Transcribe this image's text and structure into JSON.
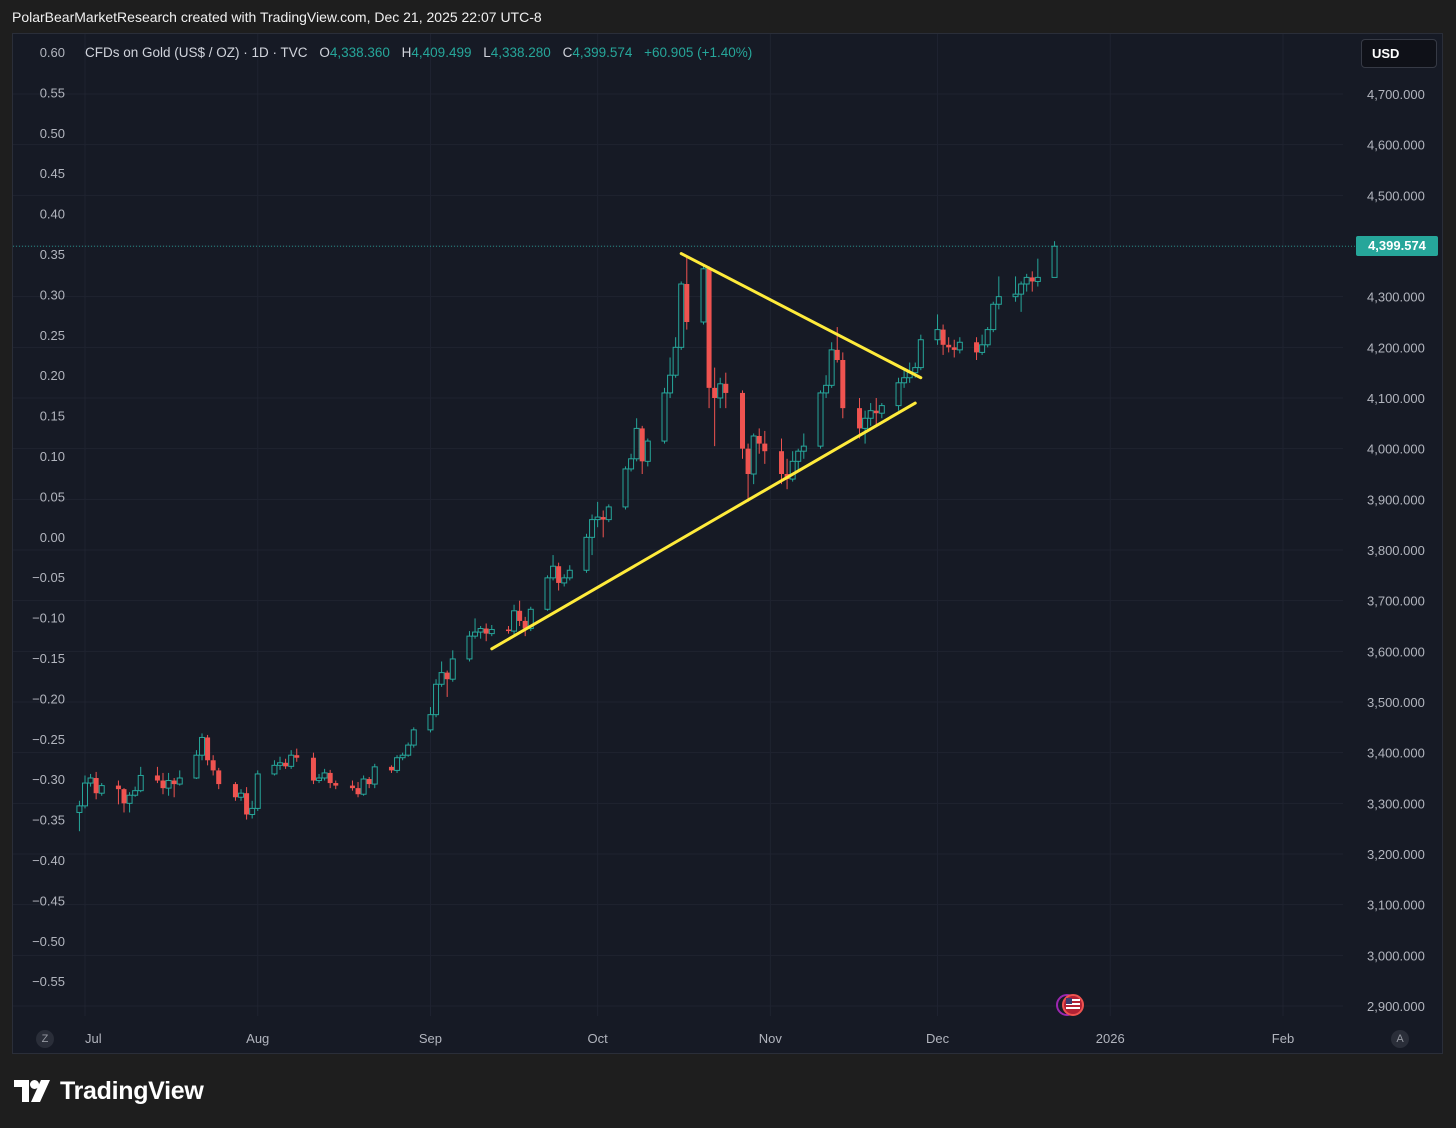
{
  "caption": "PolarBearMarketResearch created with TradingView.com, Dec 21, 2025 22:07 UTC-8",
  "legend": {
    "symbol": "CFDs on Gold (US$ / OZ) · 1D · TVC",
    "o_label": "O",
    "o_value": "4,338.360",
    "h_label": "H",
    "h_value": "4,409.499",
    "l_label": "L",
    "l_value": "4,338.280",
    "c_label": "C",
    "c_value": "4,399.574",
    "change": "+60.905 (+1.40%)"
  },
  "currency_button": "USD",
  "last_price_tag": "4,399.574",
  "corner_left": "Z",
  "corner_right": "A",
  "brand": "TradingView",
  "colors": {
    "up": "#26a69a",
    "down": "#ef5350",
    "trendline": "#ffeb3b",
    "background": "#161a25"
  },
  "icons": {
    "event": "us-flag-event-icon",
    "logo": "tradingview-logo-icon"
  },
  "chart_data": {
    "type": "candlestick",
    "title": "CFDs on Gold (US$ / OZ) · 1D · TVC",
    "right_axis": {
      "ticks": [
        "4,700.000",
        "4,600.000",
        "4,500.000",
        "4,400.000",
        "4,300.000",
        "4,200.000",
        "4,100.000",
        "4,000.000",
        "3,900.000",
        "3,800.000",
        "3,700.000",
        "3,600.000",
        "3,500.000",
        "3,400.000",
        "3,300.000",
        "3,200.000",
        "3,100.000",
        "3,000.000",
        "2,900.000"
      ],
      "range": [
        2800,
        4760
      ]
    },
    "left_axis": {
      "ticks": [
        "0.60",
        "0.55",
        "0.50",
        "0.45",
        "0.40",
        "0.35",
        "0.30",
        "0.25",
        "0.20",
        "0.15",
        "0.10",
        "0.05",
        "0.00",
        "−0.05",
        "−0.10",
        "−0.15",
        "−0.20",
        "−0.25",
        "−0.30",
        "−0.35",
        "−0.40",
        "−0.45",
        "−0.50",
        "−0.55"
      ]
    },
    "x_axis": {
      "labels": [
        "Jul",
        "Aug",
        "Sep",
        "Oct",
        "Nov",
        "Dec",
        "2026",
        "Feb"
      ],
      "label_dates": [
        "2025-07-01",
        "2025-08-01",
        "2025-09-01",
        "2025-10-01",
        "2025-11-01",
        "2025-12-01",
        "2026-01-01",
        "2026-02-01"
      ]
    },
    "last_price": 4399.574,
    "candles": [
      [
        "2025-06-30",
        3282,
        3305,
        3245,
        3295
      ],
      [
        "2025-07-01",
        3295,
        3355,
        3290,
        3340
      ],
      [
        "2025-07-02",
        3340,
        3358,
        3333,
        3350
      ],
      [
        "2025-07-03",
        3350,
        3362,
        3308,
        3320
      ],
      [
        "2025-07-04",
        3320,
        3340,
        3315,
        3335
      ],
      [
        "2025-07-07",
        3335,
        3345,
        3298,
        3328
      ],
      [
        "2025-07-08",
        3328,
        3330,
        3282,
        3300
      ],
      [
        "2025-07-09",
        3300,
        3322,
        3282,
        3316
      ],
      [
        "2025-07-10",
        3316,
        3333,
        3313,
        3325
      ],
      [
        "2025-07-11",
        3325,
        3372,
        3322,
        3355
      ],
      [
        "2025-07-14",
        3355,
        3372,
        3340,
        3345
      ],
      [
        "2025-07-15",
        3345,
        3360,
        3318,
        3330
      ],
      [
        "2025-07-16",
        3330,
        3360,
        3315,
        3345
      ],
      [
        "2025-07-17",
        3345,
        3350,
        3312,
        3338
      ],
      [
        "2025-07-18",
        3338,
        3365,
        3335,
        3350
      ],
      [
        "2025-07-21",
        3350,
        3405,
        3348,
        3395
      ],
      [
        "2025-07-22",
        3395,
        3438,
        3385,
        3430
      ],
      [
        "2025-07-23",
        3430,
        3435,
        3375,
        3385
      ],
      [
        "2025-07-24",
        3385,
        3395,
        3355,
        3365
      ],
      [
        "2025-07-25",
        3365,
        3370,
        3328,
        3338
      ],
      [
        "2025-07-28",
        3338,
        3342,
        3305,
        3312
      ],
      [
        "2025-07-29",
        3312,
        3328,
        3305,
        3320
      ],
      [
        "2025-07-30",
        3320,
        3332,
        3268,
        3278
      ],
      [
        "2025-07-31",
        3278,
        3305,
        3270,
        3290
      ],
      [
        "2025-08-01",
        3290,
        3365,
        3285,
        3358
      ],
      [
        "2025-08-04",
        3358,
        3385,
        3355,
        3375
      ],
      [
        "2025-08-05",
        3375,
        3392,
        3366,
        3380
      ],
      [
        "2025-08-06",
        3380,
        3388,
        3368,
        3373
      ],
      [
        "2025-08-07",
        3373,
        3405,
        3368,
        3395
      ],
      [
        "2025-08-08",
        3395,
        3408,
        3382,
        3390
      ],
      [
        "2025-08-11",
        3390,
        3400,
        3338,
        3345
      ],
      [
        "2025-08-12",
        3345,
        3358,
        3340,
        3350
      ],
      [
        "2025-08-13",
        3350,
        3368,
        3345,
        3360
      ],
      [
        "2025-08-14",
        3360,
        3366,
        3330,
        3340
      ],
      [
        "2025-08-15",
        3340,
        3345,
        3328,
        3335
      ],
      [
        "2025-08-18",
        3335,
        3345,
        3325,
        3330
      ],
      [
        "2025-08-19",
        3330,
        3342,
        3312,
        3318
      ],
      [
        "2025-08-20",
        3318,
        3355,
        3315,
        3348
      ],
      [
        "2025-08-21",
        3348,
        3352,
        3330,
        3338
      ],
      [
        "2025-08-22",
        3338,
        3378,
        3330,
        3372
      ],
      [
        "2025-08-25",
        3372,
        3375,
        3360,
        3365
      ],
      [
        "2025-08-26",
        3365,
        3395,
        3360,
        3390
      ],
      [
        "2025-08-27",
        3390,
        3400,
        3385,
        3395
      ],
      [
        "2025-08-28",
        3395,
        3420,
        3392,
        3415
      ],
      [
        "2025-08-29",
        3415,
        3450,
        3410,
        3445
      ],
      [
        "2025-09-01",
        3445,
        3490,
        3440,
        3475
      ],
      [
        "2025-09-02",
        3475,
        3545,
        3470,
        3535
      ],
      [
        "2025-09-03",
        3535,
        3580,
        3530,
        3558
      ],
      [
        "2025-09-04",
        3558,
        3562,
        3510,
        3545
      ],
      [
        "2025-09-05",
        3545,
        3602,
        3540,
        3585
      ],
      [
        "2025-09-08",
        3585,
        3640,
        3580,
        3630
      ],
      [
        "2025-09-09",
        3630,
        3665,
        3625,
        3638
      ],
      [
        "2025-09-10",
        3638,
        3650,
        3625,
        3645
      ],
      [
        "2025-09-11",
        3645,
        3655,
        3620,
        3635
      ],
      [
        "2025-09-12",
        3635,
        3652,
        3630,
        3643
      ],
      [
        "2025-09-15",
        3643,
        3650,
        3635,
        3640
      ],
      [
        "2025-09-16",
        3640,
        3692,
        3630,
        3680
      ],
      [
        "2025-09-17",
        3680,
        3700,
        3650,
        3660
      ],
      [
        "2025-09-18",
        3660,
        3668,
        3630,
        3645
      ],
      [
        "2025-09-19",
        3645,
        3688,
        3640,
        3683
      ],
      [
        "2025-09-22",
        3683,
        3750,
        3680,
        3745
      ],
      [
        "2025-09-23",
        3745,
        3790,
        3740,
        3768
      ],
      [
        "2025-09-24",
        3768,
        3775,
        3720,
        3735
      ],
      [
        "2025-09-25",
        3735,
        3752,
        3728,
        3745
      ],
      [
        "2025-09-26",
        3745,
        3770,
        3740,
        3760
      ],
      [
        "2025-09-29",
        3760,
        3832,
        3755,
        3825
      ],
      [
        "2025-09-30",
        3825,
        3870,
        3790,
        3860
      ],
      [
        "2025-10-01",
        3860,
        3895,
        3845,
        3865
      ],
      [
        "2025-10-02",
        3865,
        3878,
        3825,
        3860
      ],
      [
        "2025-10-03",
        3860,
        3890,
        3855,
        3885
      ],
      [
        "2025-10-06",
        3885,
        3965,
        3880,
        3960
      ],
      [
        "2025-10-07",
        3960,
        3990,
        3955,
        3980
      ],
      [
        "2025-10-08",
        3980,
        4060,
        3975,
        4040
      ],
      [
        "2025-10-09",
        4040,
        4045,
        3950,
        3975
      ],
      [
        "2025-10-10",
        3975,
        4020,
        3965,
        4015
      ],
      [
        "2025-10-13",
        4015,
        4120,
        4010,
        4110
      ],
      [
        "2025-10-14",
        4110,
        4180,
        4100,
        4145
      ],
      [
        "2025-10-15",
        4145,
        4220,
        4140,
        4200
      ],
      [
        "2025-10-16",
        4200,
        4330,
        4195,
        4325
      ],
      [
        "2025-10-17",
        4325,
        4380,
        4235,
        4250
      ],
      [
        "2025-10-20",
        4250,
        4360,
        4245,
        4355
      ],
      [
        "2025-10-21",
        4355,
        4360,
        4080,
        4120
      ],
      [
        "2025-10-22",
        4120,
        4160,
        4005,
        4100
      ],
      [
        "2025-10-23",
        4100,
        4140,
        4080,
        4128
      ],
      [
        "2025-10-24",
        4128,
        4150,
        4080,
        4110
      ],
      [
        "2025-10-27",
        4110,
        4115,
        3980,
        4000
      ],
      [
        "2025-10-28",
        4000,
        4010,
        3895,
        3950
      ],
      [
        "2025-10-29",
        3950,
        4030,
        3930,
        4025
      ],
      [
        "2025-10-30",
        4025,
        4040,
        3990,
        4010
      ],
      [
        "2025-10-31",
        4010,
        4035,
        3970,
        3995
      ],
      [
        "2025-11-03",
        3995,
        4020,
        3930,
        3950
      ],
      [
        "2025-11-04",
        3950,
        3980,
        3920,
        3940
      ],
      [
        "2025-11-05",
        3940,
        3995,
        3935,
        3975
      ],
      [
        "2025-11-06",
        3975,
        4000,
        3955,
        3995
      ],
      [
        "2025-11-07",
        3995,
        4030,
        3980,
        4005
      ],
      [
        "2025-11-10",
        4005,
        4115,
        4000,
        4110
      ],
      [
        "2025-11-11",
        4110,
        4145,
        4100,
        4125
      ],
      [
        "2025-11-12",
        4125,
        4210,
        4120,
        4195
      ],
      [
        "2025-11-13",
        4195,
        4240,
        4170,
        4175
      ],
      [
        "2025-11-14",
        4175,
        4190,
        4060,
        4080
      ],
      [
        "2025-11-17",
        4080,
        4100,
        4020,
        4040
      ],
      [
        "2025-11-18",
        4040,
        4075,
        4010,
        4060
      ],
      [
        "2025-11-19",
        4060,
        4090,
        4045,
        4075
      ],
      [
        "2025-11-20",
        4075,
        4100,
        4045,
        4070
      ],
      [
        "2025-11-21",
        4070,
        4090,
        4060,
        4085
      ],
      [
        "2025-11-24",
        4085,
        4140,
        4075,
        4130
      ],
      [
        "2025-11-25",
        4130,
        4160,
        4120,
        4140
      ],
      [
        "2025-11-26",
        4140,
        4170,
        4130,
        4150
      ],
      [
        "2025-11-27",
        4150,
        4170,
        4140,
        4160
      ],
      [
        "2025-11-28",
        4160,
        4225,
        4155,
        4215
      ],
      [
        "2025-12-01",
        4215,
        4265,
        4205,
        4235
      ],
      [
        "2025-12-02",
        4235,
        4245,
        4185,
        4205
      ],
      [
        "2025-12-03",
        4205,
        4220,
        4190,
        4200
      ],
      [
        "2025-12-04",
        4200,
        4215,
        4180,
        4195
      ],
      [
        "2025-12-05",
        4195,
        4220,
        4188,
        4210
      ],
      [
        "2025-12-08",
        4210,
        4220,
        4175,
        4190
      ],
      [
        "2025-12-09",
        4190,
        4225,
        4185,
        4205
      ],
      [
        "2025-12-10",
        4205,
        4240,
        4200,
        4235
      ],
      [
        "2025-12-11",
        4235,
        4290,
        4230,
        4285
      ],
      [
        "2025-12-12",
        4285,
        4340,
        4275,
        4300
      ],
      [
        "2025-12-15",
        4300,
        4340,
        4290,
        4305
      ],
      [
        "2025-12-16",
        4305,
        4330,
        4270,
        4325
      ],
      [
        "2025-12-17",
        4325,
        4345,
        4310,
        4338
      ],
      [
        "2025-12-18",
        4338,
        4350,
        4310,
        4330
      ],
      [
        "2025-12-19",
        4330,
        4375,
        4320,
        4338
      ],
      [
        "2025-12-22",
        4338,
        4409.499,
        4338.28,
        4399.574
      ]
    ],
    "trendlines": [
      {
        "from": [
          "2025-10-16",
          4385
        ],
        "to": [
          "2025-11-28",
          4140
        ]
      },
      {
        "from": [
          "2025-09-12",
          3605
        ],
        "to": [
          "2025-11-27",
          4090
        ]
      }
    ]
  }
}
